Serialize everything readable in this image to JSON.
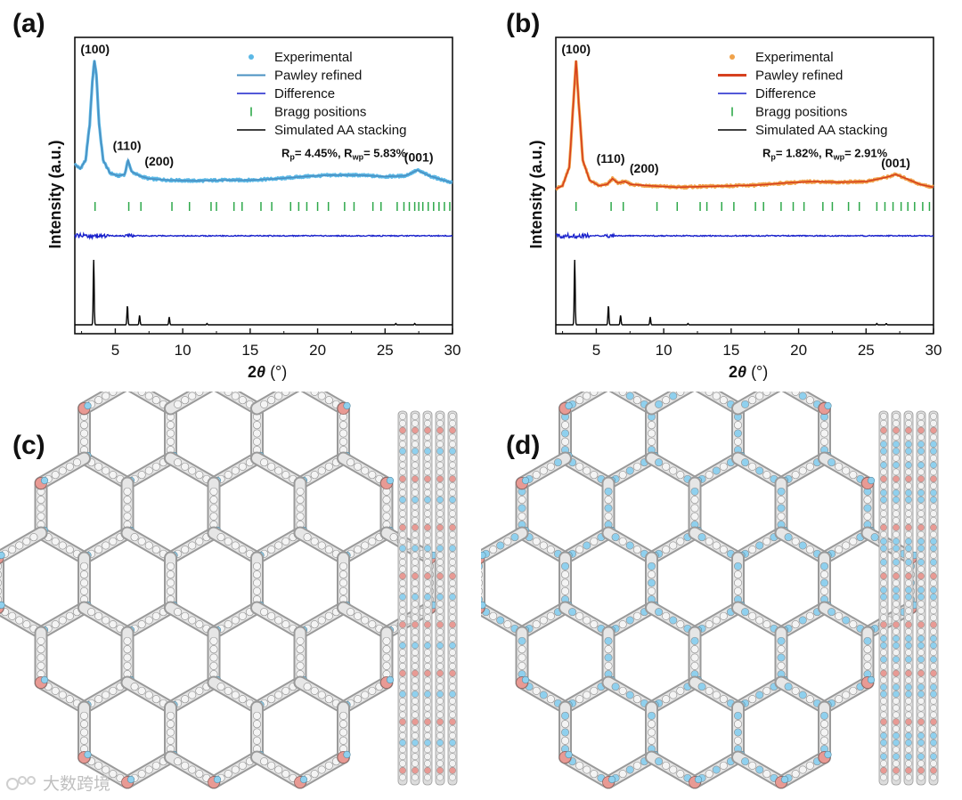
{
  "panels": {
    "a": "(a)",
    "b": "(b)",
    "c": "(c)",
    "d": "(d)"
  },
  "watermark": "大数跨境",
  "chart_data": [
    {
      "type": "line",
      "panel": "(a)",
      "xlabel": "2θ (°)",
      "ylabel": "Intensity (a.u.)",
      "xlim": [
        2,
        30
      ],
      "xticks": [
        5,
        10,
        15,
        20,
        25,
        30
      ],
      "colors": {
        "experimental": "#5bb8e6",
        "refined": "#4a90c2",
        "difference": "#1a22cc",
        "bragg": "#2ea84a",
        "simulated": "#000000"
      },
      "legend": [
        "Experimental",
        "Pawley refined",
        "Difference",
        "Bragg positions",
        "Simulated AA stacking"
      ],
      "r_factors": {
        "rp": "4.45%",
        "rwp": "5.83%"
      },
      "peaks": [
        {
          "label": "(100)",
          "x": 3.5,
          "y": 100
        },
        {
          "label": "(110)",
          "x": 6.0,
          "y": 31
        },
        {
          "label": "(200)",
          "x": 6.8,
          "y": 25
        },
        {
          "label": "(001)",
          "x": 27.5,
          "y": 24
        }
      ],
      "experimental_profile": [
        [
          2.0,
          27
        ],
        [
          2.4,
          24
        ],
        [
          2.8,
          30
        ],
        [
          3.1,
          55
        ],
        [
          3.3,
          85
        ],
        [
          3.45,
          100
        ],
        [
          3.6,
          90
        ],
        [
          3.8,
          55
        ],
        [
          4.1,
          30
        ],
        [
          4.6,
          21
        ],
        [
          5.2,
          19
        ],
        [
          5.7,
          20
        ],
        [
          5.95,
          30
        ],
        [
          6.2,
          22
        ],
        [
          6.8,
          19
        ],
        [
          7.5,
          17
        ],
        [
          9,
          16
        ],
        [
          11,
          15.5
        ],
        [
          13,
          16
        ],
        [
          15,
          16
        ],
        [
          17,
          17
        ],
        [
          19,
          18.5
        ],
        [
          21,
          19.5
        ],
        [
          23,
          19.5
        ],
        [
          25,
          18.5
        ],
        [
          26.5,
          19
        ],
        [
          27.4,
          23
        ],
        [
          28.3,
          19
        ],
        [
          30,
          14
        ]
      ],
      "bragg_positions": [
        3.5,
        6.0,
        6.9,
        9.2,
        10.5,
        12.1,
        12.5,
        13.8,
        14.4,
        15.8,
        16.6,
        18.0,
        18.6,
        19.2,
        20.0,
        20.8,
        22.0,
        22.7,
        24.1,
        24.7,
        25.9,
        26.4,
        26.8,
        27.2,
        27.5,
        27.8,
        28.2,
        28.6,
        29.0,
        29.4,
        29.8
      ],
      "simulated_peaks": [
        [
          3.4,
          100
        ],
        [
          5.9,
          30
        ],
        [
          6.8,
          15
        ],
        [
          9.0,
          12
        ],
        [
          11.8,
          2
        ],
        [
          25.8,
          2
        ],
        [
          27.2,
          2
        ]
      ]
    },
    {
      "type": "line",
      "panel": "(b)",
      "xlabel": "2θ (°)",
      "ylabel": "Intensity (a.u.)",
      "xlim": [
        2,
        30
      ],
      "xticks": [
        5,
        10,
        15,
        20,
        25,
        30
      ],
      "colors": {
        "experimental": "#f0a24a",
        "refined": "#d6401e",
        "difference": "#1a22cc",
        "bragg": "#2ea84a",
        "simulated": "#000000"
      },
      "legend": [
        "Experimental",
        "Pawley refined",
        "Difference",
        "Bragg positions",
        "Simulated AA stacking"
      ],
      "r_factors": {
        "rp": "1.82%",
        "rwp": "2.91%"
      },
      "peaks": [
        {
          "label": "(100)",
          "x": 3.5,
          "y": 100
        },
        {
          "label": "(110)",
          "x": 6.2,
          "y": 22
        },
        {
          "label": "(200)",
          "x": 7.1,
          "y": 20
        },
        {
          "label": "(001)",
          "x": 27.2,
          "y": 20
        }
      ],
      "experimental_profile": [
        [
          2.0,
          10
        ],
        [
          2.5,
          12
        ],
        [
          3.0,
          25
        ],
        [
          3.3,
          70
        ],
        [
          3.5,
          100
        ],
        [
          3.7,
          70
        ],
        [
          4.0,
          30
        ],
        [
          4.5,
          16
        ],
        [
          5.2,
          12
        ],
        [
          5.8,
          13
        ],
        [
          6.2,
          17
        ],
        [
          6.6,
          14
        ],
        [
          7.1,
          15
        ],
        [
          7.6,
          13
        ],
        [
          9,
          12
        ],
        [
          11,
          11
        ],
        [
          13,
          11.5
        ],
        [
          15,
          12
        ],
        [
          17,
          12.5
        ],
        [
          19,
          14
        ],
        [
          21,
          15
        ],
        [
          23,
          14.5
        ],
        [
          25,
          15
        ],
        [
          26.5,
          18
        ],
        [
          27.2,
          20
        ],
        [
          28,
          17
        ],
        [
          29,
          13
        ],
        [
          30,
          11
        ]
      ],
      "bragg_positions": [
        3.5,
        6.1,
        7.0,
        9.5,
        11.0,
        12.7,
        13.2,
        14.3,
        15.2,
        16.8,
        17.4,
        18.7,
        19.6,
        20.4,
        21.8,
        22.5,
        23.7,
        24.5,
        25.8,
        26.4,
        27.0,
        27.6,
        28.1,
        28.6,
        29.2,
        29.7
      ],
      "simulated_peaks": [
        [
          3.4,
          100
        ],
        [
          5.9,
          30
        ],
        [
          6.8,
          15
        ],
        [
          9.0,
          12
        ],
        [
          11.8,
          2
        ],
        [
          25.8,
          2
        ],
        [
          26.5,
          2
        ]
      ]
    }
  ]
}
